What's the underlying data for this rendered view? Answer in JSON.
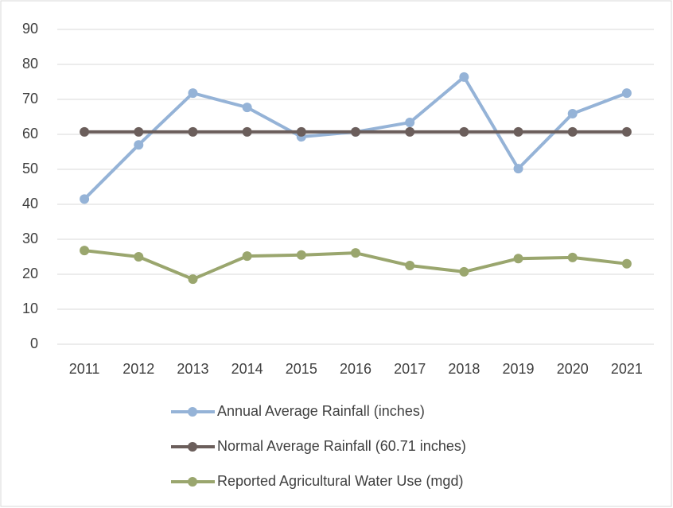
{
  "chart_data": {
    "type": "line",
    "categories": [
      "2011",
      "2012",
      "2013",
      "2014",
      "2015",
      "2016",
      "2017",
      "2018",
      "2019",
      "2020",
      "2021"
    ],
    "series": [
      {
        "name": "Annual Average Rainfall (inches)",
        "color": "#95b3d7",
        "values": [
          41.5,
          57,
          71.8,
          67.7,
          59.3,
          60.7,
          63.4,
          76.4,
          50.2,
          65.9,
          71.8
        ]
      },
      {
        "name": "Normal Average Rainfall (60.71 inches)",
        "color": "#6b5e5b",
        "values": [
          60.71,
          60.71,
          60.71,
          60.71,
          60.71,
          60.71,
          60.71,
          60.71,
          60.71,
          60.71,
          60.71
        ]
      },
      {
        "name": "Reported Agricultural Water Use (mgd)",
        "color": "#9aa66e",
        "values": [
          26.8,
          25,
          18.6,
          25.2,
          25.5,
          26.1,
          22.5,
          20.7,
          24.5,
          24.8,
          23
        ]
      }
    ],
    "ylim": [
      0,
      90
    ],
    "yticks": [
      0,
      10,
      20,
      30,
      40,
      50,
      60,
      70,
      80,
      90
    ],
    "grid": true,
    "legend": "bottom"
  }
}
